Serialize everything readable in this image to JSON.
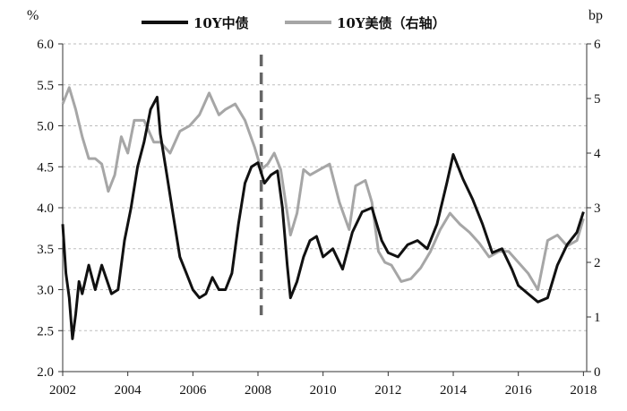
{
  "chart_data": {
    "type": "line",
    "title": "",
    "left_unit": "%",
    "right_unit": "bp",
    "x_ticks": [
      "2002",
      "2004",
      "2006",
      "2008",
      "2010",
      "2012",
      "2014",
      "2016",
      "2018"
    ],
    "y_left_ticks": [
      "2.0",
      "2.5",
      "3.0",
      "3.5",
      "4.0",
      "4.5",
      "5.0",
      "5.5",
      "6.0"
    ],
    "y_right_ticks": [
      "0",
      "1",
      "2",
      "3",
      "4",
      "5",
      "6"
    ],
    "ylim_left": [
      2.0,
      6.0
    ],
    "ylim_right": [
      0,
      6
    ],
    "xlim": [
      2002,
      2018.1
    ],
    "grid": "horizontal dashed",
    "legend_position": "top",
    "reference_line_x": 2008.1,
    "series": [
      {
        "name": "10Y中债",
        "axis": "left",
        "color": "#111111",
        "x": [
          2002.0,
          2002.1,
          2002.2,
          2002.3,
          2002.4,
          2002.5,
          2002.6,
          2002.8,
          2003.0,
          2003.2,
          2003.5,
          2003.7,
          2003.9,
          2004.1,
          2004.3,
          2004.5,
          2004.7,
          2004.9,
          2005.0,
          2005.2,
          2005.4,
          2005.6,
          2005.8,
          2006.0,
          2006.2,
          2006.4,
          2006.6,
          2006.8,
          2007.0,
          2007.2,
          2007.4,
          2007.6,
          2007.8,
          2008.0,
          2008.2,
          2008.4,
          2008.6,
          2008.75,
          2008.9,
          2009.0,
          2009.2,
          2009.4,
          2009.6,
          2009.8,
          2010.0,
          2010.3,
          2010.6,
          2010.9,
          2011.2,
          2011.5,
          2011.8,
          2012.0,
          2012.3,
          2012.6,
          2012.9,
          2013.2,
          2013.5,
          2013.8,
          2014.0,
          2014.3,
          2014.6,
          2014.9,
          2015.2,
          2015.5,
          2015.8,
          2016.0,
          2016.3,
          2016.6,
          2016.9,
          2017.2,
          2017.5,
          2017.8,
          2018.0
        ],
        "y": [
          3.8,
          3.2,
          2.9,
          2.4,
          2.7,
          3.1,
          2.95,
          3.3,
          3.0,
          3.3,
          2.95,
          3.0,
          3.6,
          4.0,
          4.5,
          4.8,
          5.2,
          5.35,
          4.9,
          4.4,
          3.9,
          3.4,
          3.2,
          3.0,
          2.9,
          2.95,
          3.15,
          3.0,
          3.0,
          3.2,
          3.8,
          4.3,
          4.5,
          4.55,
          4.3,
          4.4,
          4.45,
          4.0,
          3.3,
          2.9,
          3.1,
          3.4,
          3.6,
          3.65,
          3.4,
          3.5,
          3.25,
          3.7,
          3.95,
          4.0,
          3.6,
          3.45,
          3.4,
          3.55,
          3.6,
          3.5,
          3.8,
          4.3,
          4.65,
          4.35,
          4.1,
          3.8,
          3.45,
          3.5,
          3.25,
          3.05,
          2.95,
          2.85,
          2.9,
          3.3,
          3.55,
          3.7,
          3.95
        ]
      },
      {
        "name": "10Y美债（右轴）",
        "axis": "right",
        "color": "#a6a6a6",
        "x": [
          2002.0,
          2002.2,
          2002.4,
          2002.6,
          2002.8,
          2003.0,
          2003.2,
          2003.4,
          2003.6,
          2003.8,
          2004.0,
          2004.2,
          2004.5,
          2004.8,
          2005.0,
          2005.3,
          2005.6,
          2005.9,
          2006.2,
          2006.5,
          2006.8,
          2007.0,
          2007.3,
          2007.6,
          2007.9,
          2008.1,
          2008.3,
          2008.5,
          2008.7,
          2008.9,
          2009.0,
          2009.2,
          2009.4,
          2009.6,
          2009.9,
          2010.2,
          2010.5,
          2010.8,
          2011.0,
          2011.3,
          2011.5,
          2011.7,
          2011.9,
          2012.1,
          2012.4,
          2012.7,
          2013.0,
          2013.3,
          2013.6,
          2013.9,
          2014.2,
          2014.5,
          2014.8,
          2015.1,
          2015.4,
          2015.7,
          2016.0,
          2016.3,
          2016.6,
          2016.9,
          2017.2,
          2017.5,
          2017.8,
          2018.0
        ],
        "y": [
          4.9,
          5.2,
          4.8,
          4.3,
          3.9,
          3.9,
          3.8,
          3.3,
          3.6,
          4.3,
          4.0,
          4.6,
          4.6,
          4.2,
          4.2,
          4.0,
          4.4,
          4.5,
          4.7,
          5.1,
          4.7,
          4.8,
          4.9,
          4.6,
          4.1,
          3.7,
          3.8,
          4.0,
          3.7,
          2.9,
          2.5,
          2.9,
          3.7,
          3.6,
          3.7,
          3.8,
          3.1,
          2.6,
          3.4,
          3.5,
          3.1,
          2.2,
          2.0,
          1.95,
          1.65,
          1.7,
          1.9,
          2.2,
          2.6,
          2.9,
          2.7,
          2.55,
          2.35,
          2.1,
          2.2,
          2.2,
          2.0,
          1.8,
          1.5,
          2.4,
          2.5,
          2.3,
          2.4,
          2.8
        ]
      }
    ]
  }
}
